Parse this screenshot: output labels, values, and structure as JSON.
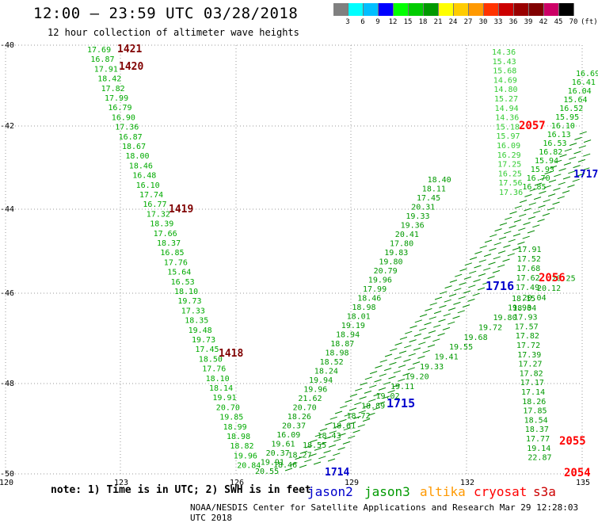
{
  "title": "12:00 – 23:59 UTC 03/28/2018",
  "subtitle": "12 hour collection of altimeter wave heights",
  "note": "note:  1) Time is in UTC;  2) SWH is in feet",
  "credit": "NOAA/NESDIS Center for Satellite Applications and Research    Mar 29 12:28:03 UTC 2018",
  "scale": {
    "colors": [
      "#808080",
      "#00ffff",
      "#00bfff",
      "#0000ff",
      "#00ff00",
      "#00cc00",
      "#009900",
      "#ffff00",
      "#ffcc00",
      "#ff9900",
      "#ff3300",
      "#cc0000",
      "#990000",
      "#800000",
      "#cc0066",
      "#000000"
    ],
    "labels": [
      "3",
      "6",
      "9",
      "12",
      "15",
      "18",
      "21",
      "24",
      "27",
      "30",
      "33",
      "36",
      "39",
      "42",
      "45",
      "70",
      "(ft)"
    ]
  },
  "axes": {
    "lat_labels": [
      "-40",
      "-42",
      "-44",
      "-46",
      "-48",
      "-50"
    ],
    "lon_labels": [
      "120",
      "123",
      "126",
      "129",
      "132",
      "135"
    ]
  },
  "satellite_legend": [
    {
      "name": "jason2",
      "color": "#0000cc"
    },
    {
      "name": "jason3",
      "color": "#009900"
    },
    {
      "name": "altika",
      "color": "#ff9900"
    },
    {
      "name": "cryosat",
      "color": "#ff0000"
    },
    {
      "name": "s3a",
      "color": "#cc0000"
    }
  ],
  "pass_labels": [
    {
      "text": "1421",
      "color": "#800000"
    },
    {
      "text": "1420",
      "color": "#800000"
    },
    {
      "text": "1419",
      "color": "#800000"
    },
    {
      "text": "1418",
      "color": "#800000"
    },
    {
      "text": "1715",
      "color": "#0000cc"
    },
    {
      "text": "1716",
      "color": "#0000cc"
    },
    {
      "text": "1714",
      "color": "#0000cc"
    },
    {
      "text": "1717",
      "color": "#0000cc"
    },
    {
      "text": "2057",
      "color": "#ff0000"
    },
    {
      "text": "2056",
      "color": "#ff0000"
    },
    {
      "text": "2055",
      "color": "#ff0000"
    },
    {
      "text": "2054",
      "color": "#ff0000"
    }
  ],
  "tracks": {
    "track_1420": [
      "17.69",
      "16.87",
      "17.91",
      "18.42",
      "17.82",
      "17.99",
      "16.79",
      "16.90",
      "17.36",
      "16.87",
      "18.67",
      "18.00",
      "18.46",
      "16.48",
      "16.10",
      "17.74",
      "16.77",
      "17.32",
      "18.39",
      "17.66",
      "18.37",
      "16.85",
      "17.76",
      "15.64",
      "16.53",
      "18.10",
      "19.73",
      "17.33",
      "18.35",
      "19.48",
      "19.73",
      "17.45",
      "18.50",
      "17.76",
      "18.10",
      "18.14",
      "19.91",
      "20.70",
      "19.85",
      "18.99",
      "18.98",
      "18.82",
      "19.96",
      "20.84"
    ],
    "track_1715": [
      "20.55",
      "19.91",
      "20.37",
      "19.61",
      "16.09",
      "20.37",
      "18.26",
      "20.70",
      "21.62",
      "19.96",
      "19.94",
      "18.24",
      "18.52",
      "18.98",
      "18.87",
      "18.94",
      "19.19",
      "18.01",
      "18.98",
      "18.46",
      "17.99",
      "19.96",
      "20.79",
      "19.80",
      "19.83",
      "17.80",
      "20.41",
      "19.36",
      "19.33",
      "20.31",
      "17.45",
      "18.11",
      "18.40"
    ],
    "track_1716": [
      "18.15",
      "18.04",
      "17.93",
      "17.57",
      "17.82",
      "17.72",
      "17.39",
      "17.27",
      "17.82",
      "17.17",
      "17.14",
      "18.26",
      "17.85",
      "18.54",
      "18.37",
      "17.77",
      "19.14",
      "22.87"
    ],
    "track_1716_north": [
      "17.49",
      "17.62",
      "17.68",
      "17.52",
      "17.91"
    ],
    "track_1717": [
      "14.36",
      "15.43",
      "15.68",
      "14.69",
      "14.80",
      "15.27",
      "14.94",
      "14.36",
      "15.18",
      "15.97",
      "16.09",
      "16.29",
      "17.25",
      "16.25",
      "17.56",
      "17.36"
    ],
    "track_2057": [
      "16.69",
      "16.41",
      "16.04",
      "15.64",
      "16.52",
      "15.95",
      "16.10",
      "16.13",
      "16.53",
      "16.82",
      "15.94",
      "15.93",
      "16.70",
      "16.85"
    ],
    "track_1714": [
      "18.46",
      "18.27",
      "18.55",
      "18.43",
      "18.61",
      "18.72",
      "18.89",
      "19.02",
      "19.11",
      "19.20",
      "19.33",
      "19.41",
      "19.55",
      "19.68",
      "19.72",
      "19.80",
      "19.93",
      "20.04",
      "20.12",
      "20.25"
    ]
  }
}
